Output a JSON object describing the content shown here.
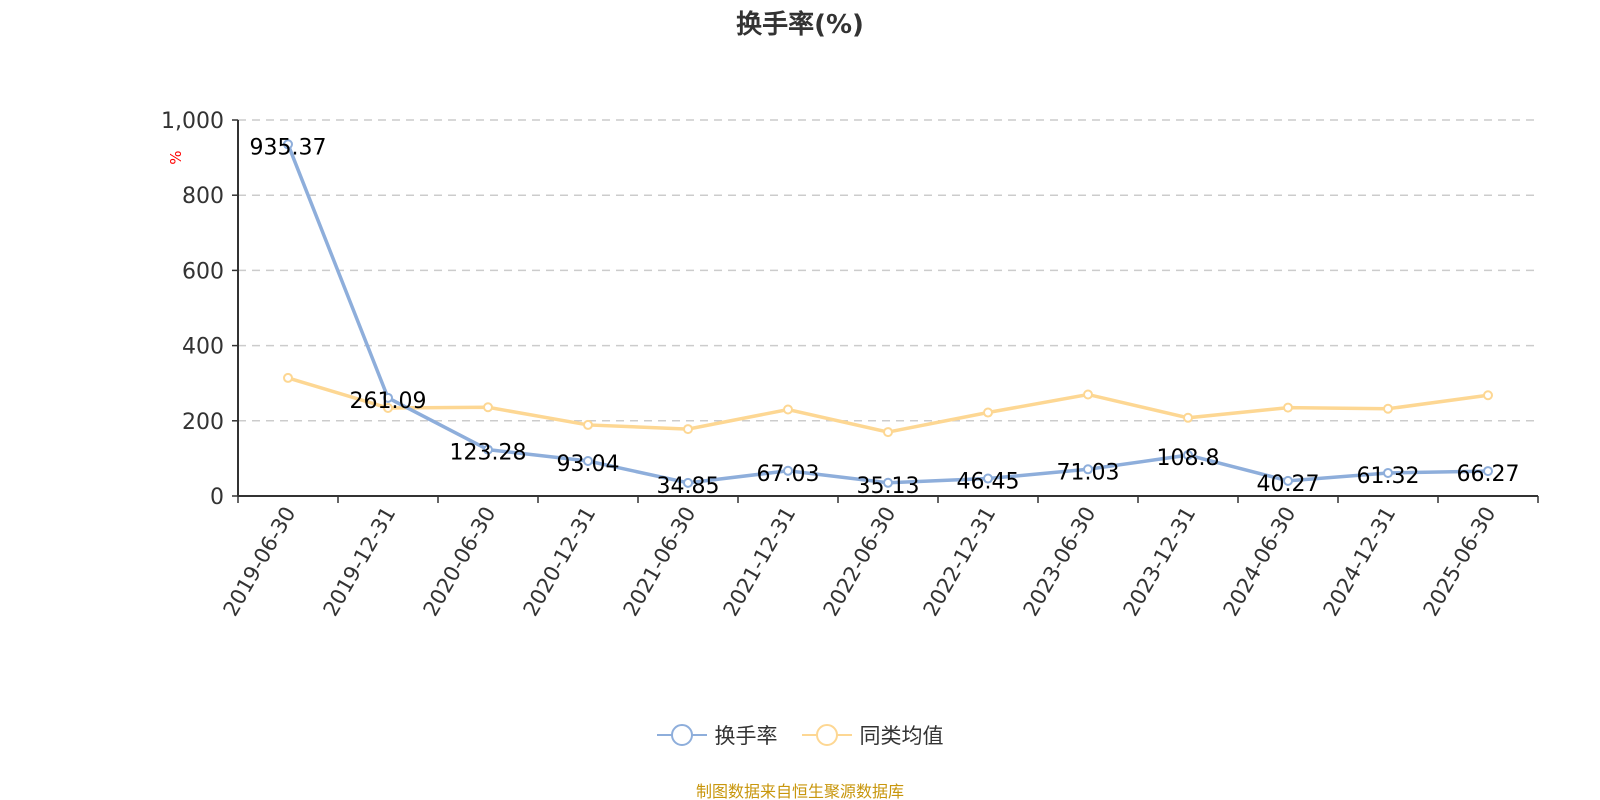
{
  "chart_data": {
    "type": "line",
    "title": "换手率(%)",
    "ylabel": "%",
    "ylim": [
      0,
      1000
    ],
    "yticks": [
      "0",
      "200",
      "400",
      "600",
      "800",
      "1,000"
    ],
    "grid": true,
    "legend_position": "bottom",
    "categories": [
      "2019-06-30",
      "2019-12-31",
      "2020-06-30",
      "2020-12-31",
      "2021-06-30",
      "2021-12-31",
      "2022-06-30",
      "2022-12-31",
      "2023-06-30",
      "2023-12-31",
      "2024-06-30",
      "2024-12-31",
      "2025-06-30"
    ],
    "series": [
      {
        "name": "换手率",
        "color": "#8eaedb",
        "labels": true,
        "values": [
          935.37,
          261.09,
          123.28,
          93.04,
          34.85,
          67.03,
          35.13,
          46.45,
          71.03,
          108.8,
          40.27,
          61.32,
          66.27
        ]
      },
      {
        "name": "同类均值",
        "color": "#fdd793",
        "labels": false,
        "values": [
          314,
          234,
          236,
          189,
          178,
          230,
          170,
          222,
          270,
          208,
          235,
          232,
          268
        ]
      }
    ]
  },
  "source": "制图数据来自恒生聚源数据库"
}
